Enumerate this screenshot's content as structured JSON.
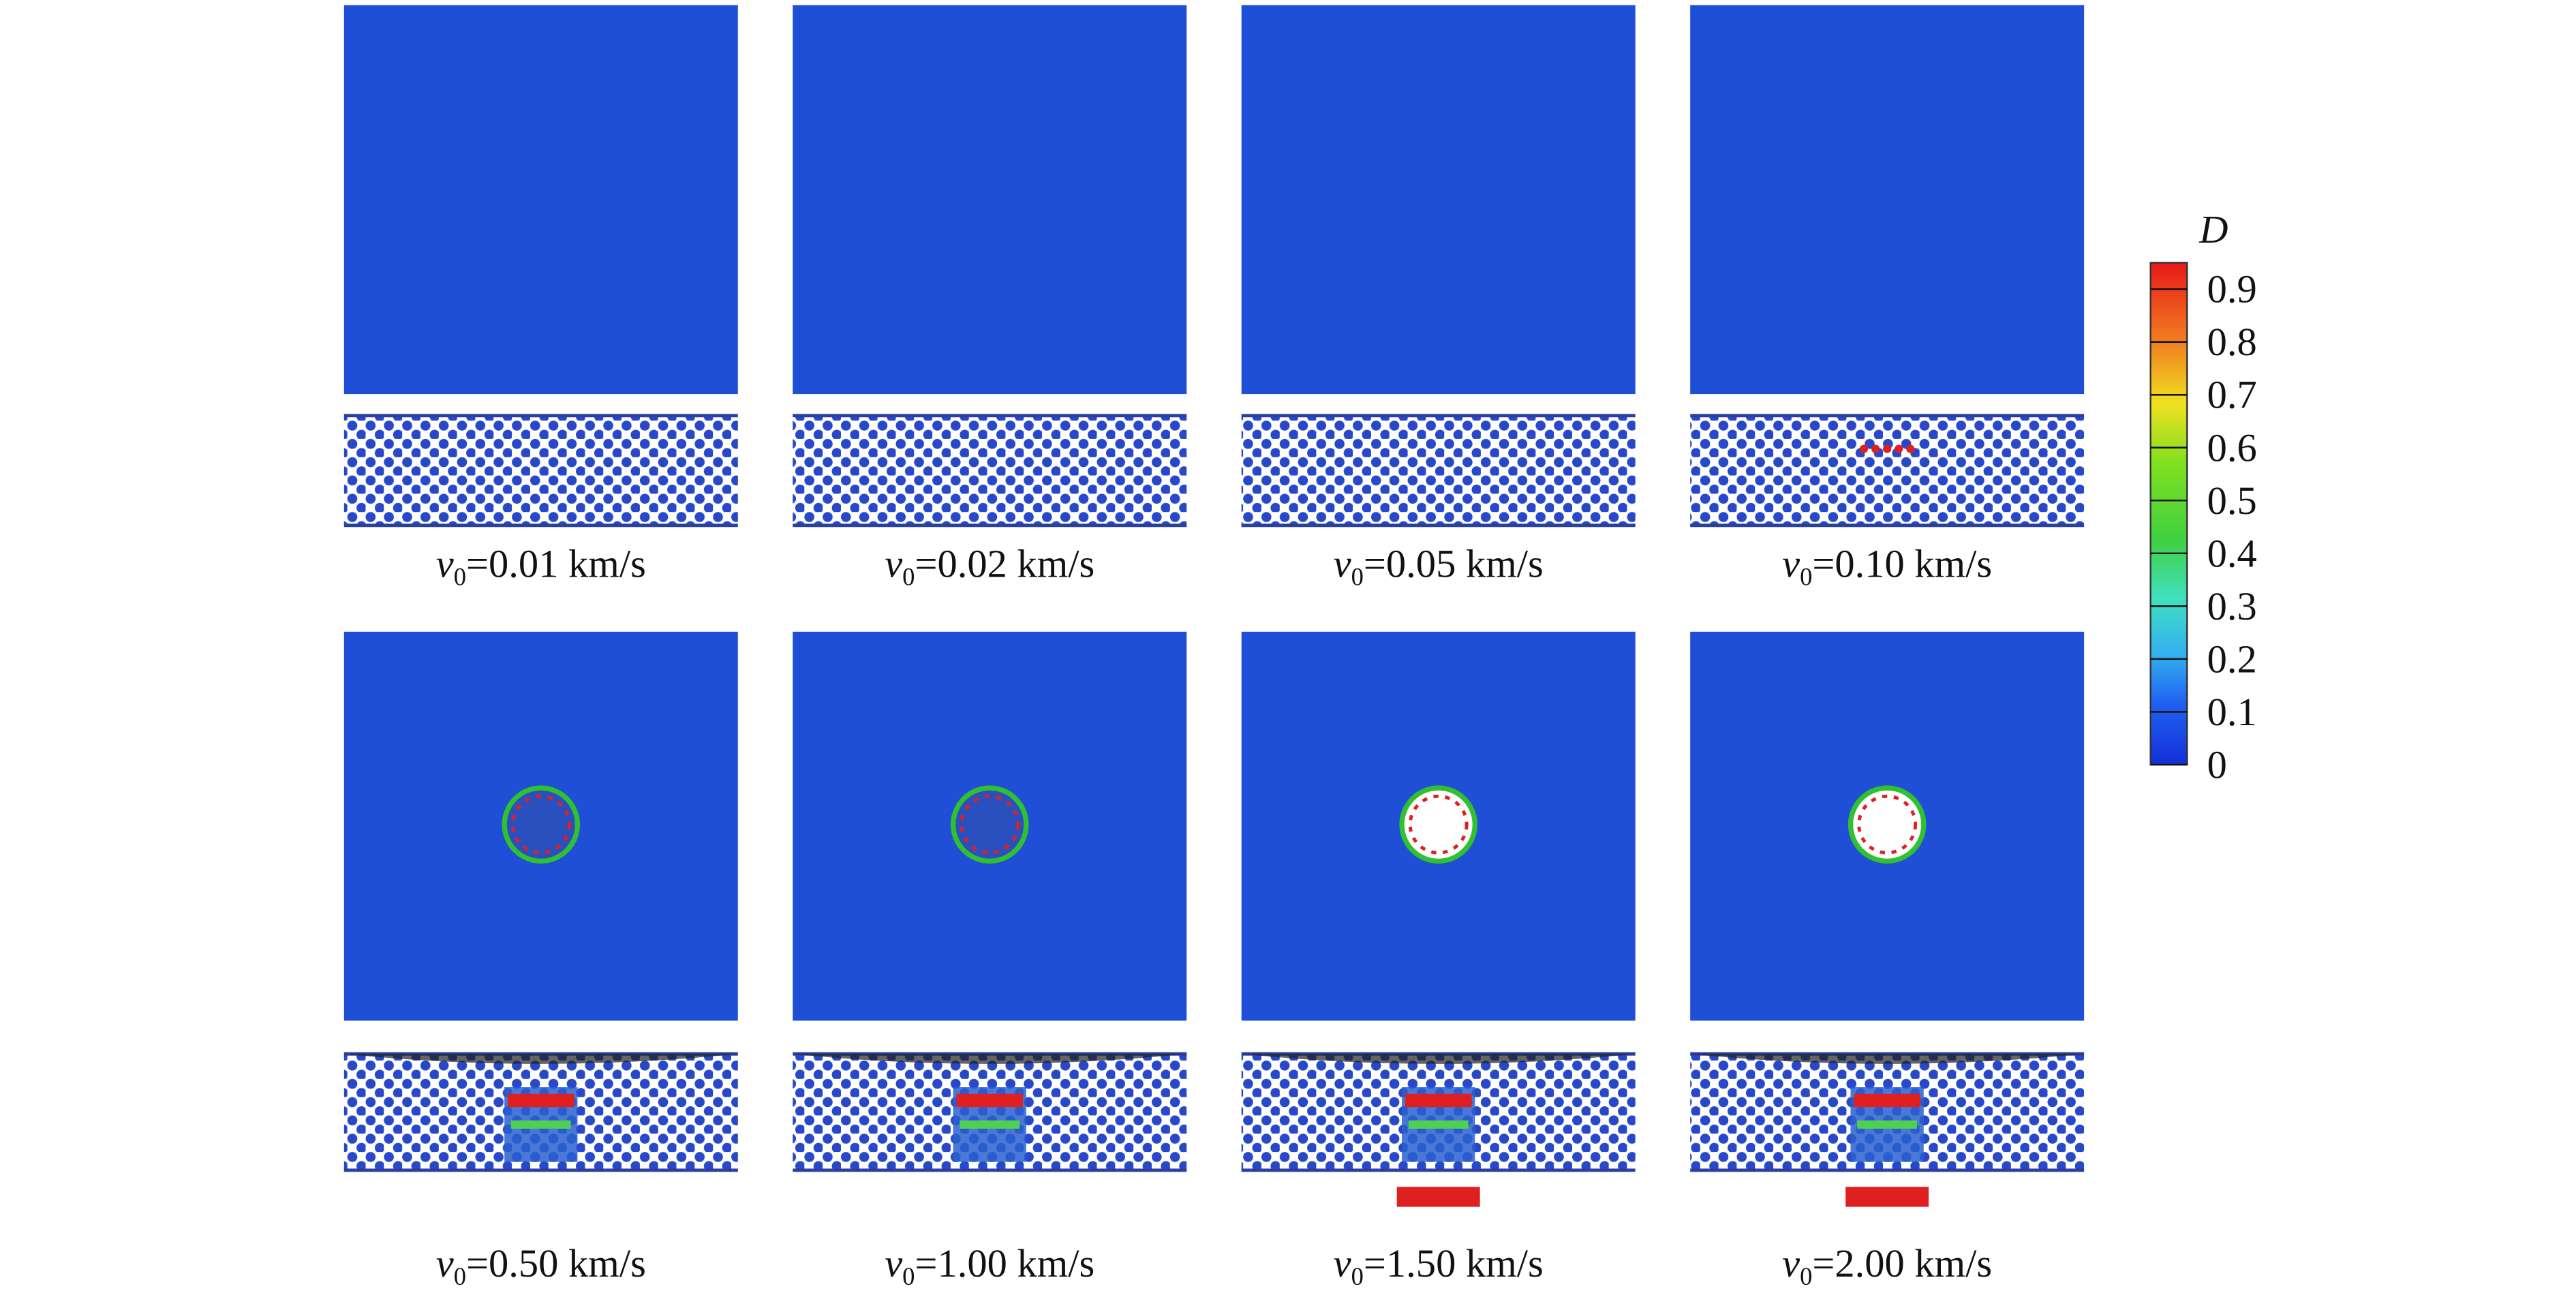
{
  "panels": [
    {
      "label": {
        "symbol": "v",
        "subscript": "0",
        "text": "=0.01 km/s"
      }
    },
    {
      "label": {
        "symbol": "v",
        "subscript": "0",
        "text": "=0.02 km/s"
      }
    },
    {
      "label": {
        "symbol": "v",
        "subscript": "0",
        "text": "=0.05 km/s"
      }
    },
    {
      "label": {
        "symbol": "v",
        "subscript": "0",
        "text": "=0.10 km/s"
      }
    },
    {
      "label": {
        "symbol": "v",
        "subscript": "0",
        "text": "=0.50 km/s"
      }
    },
    {
      "label": {
        "symbol": "v",
        "subscript": "0",
        "text": "=1.00 km/s"
      }
    },
    {
      "label": {
        "symbol": "v",
        "subscript": "0",
        "text": "=1.50 km/s"
      }
    },
    {
      "label": {
        "symbol": "v",
        "subscript": "0",
        "text": "=2.00 km/s"
      }
    }
  ],
  "colorbar": {
    "title": "D",
    "range": [
      0,
      0.95
    ],
    "ticks": [
      0,
      0.1,
      0.2,
      0.3,
      0.4,
      0.5,
      0.6,
      0.7,
      0.8,
      0.9
    ]
  }
}
